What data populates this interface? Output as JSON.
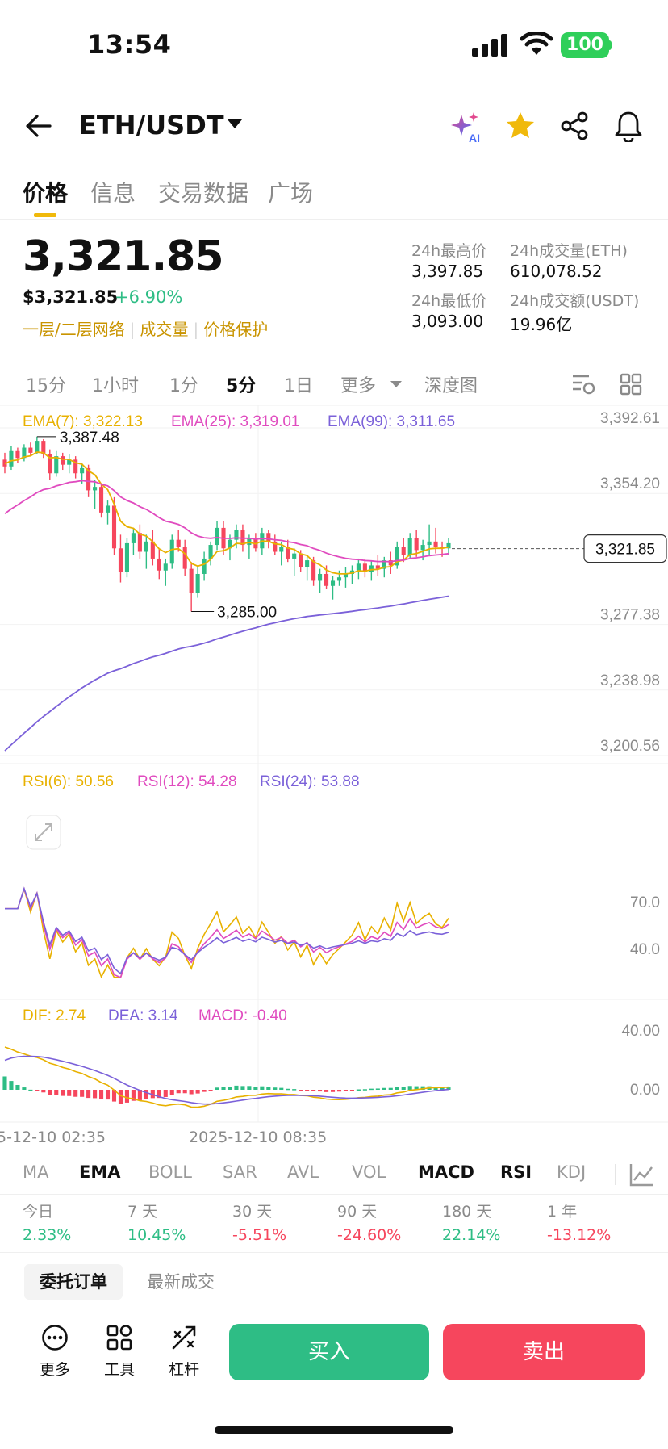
{
  "status_bar": {
    "time": "13:54",
    "battery": "100"
  },
  "header": {
    "pair": "ETH/USDT",
    "icons": [
      "back-arrow-icon",
      "ai-sparkle-icon",
      "star-icon",
      "share-icon",
      "bell-icon"
    ],
    "star_color": "#f0b90b"
  },
  "tabs": [
    {
      "label": "价格",
      "active": true
    },
    {
      "label": "信息",
      "active": false
    },
    {
      "label": "交易数据",
      "active": false
    },
    {
      "label": "广场",
      "active": false
    }
  ],
  "price": {
    "last": "3,321.85",
    "usd": "$3,321.85",
    "change": "+6.90%",
    "links": [
      "一层/二层网络",
      "成交量",
      "价格保护"
    ]
  },
  "stats": {
    "high_label": "24h最高价",
    "high": "3,397.85",
    "vol_eth_label": "24h成交量(ETH)",
    "vol_eth": "610,078.52",
    "low_label": "24h最低价",
    "low": "3,093.00",
    "vol_usdt_label": "24h成交额(USDT)",
    "vol_usdt": "19.96亿"
  },
  "intervals": [
    {
      "label": "15分",
      "active": false
    },
    {
      "label": "1小时",
      "active": false
    },
    {
      "label": "1分",
      "active": false
    },
    {
      "label": "5分",
      "active": true
    },
    {
      "label": "1日",
      "active": false
    },
    {
      "label": "更多",
      "active": false
    },
    {
      "label": "深度图",
      "active": false
    }
  ],
  "chart_data": {
    "type": "candlestick",
    "ema_labels": {
      "ema7": "EMA(7): 3,322.13",
      "ema25": "EMA(25): 3,319.01",
      "ema99": "EMA(99): 3,311.65"
    },
    "y_ticks": [
      "3,392.61",
      "3,354.20",
      "3,277.38",
      "3,238.98",
      "3,200.56"
    ],
    "ylim": [
      3200.56,
      3392.61
    ],
    "current_price": "3,321.85",
    "high_marker": "3,387.48",
    "low_marker": "3,285.00",
    "candles": [
      [
        3374,
        3378,
        3366,
        3370
      ],
      [
        3370,
        3382,
        3368,
        3379
      ],
      [
        3379,
        3381,
        3372,
        3375
      ],
      [
        3375,
        3383,
        3373,
        3381
      ],
      [
        3381,
        3384,
        3376,
        3378
      ],
      [
        3378,
        3387.48,
        3377,
        3385
      ],
      [
        3385,
        3386,
        3375,
        3377
      ],
      [
        3377,
        3380,
        3362,
        3366
      ],
      [
        3366,
        3379,
        3364,
        3376
      ],
      [
        3376,
        3378,
        3368,
        3371
      ],
      [
        3371,
        3377,
        3366,
        3374
      ],
      [
        3374,
        3376,
        3363,
        3366
      ],
      [
        3366,
        3372,
        3360,
        3369
      ],
      [
        3369,
        3371,
        3352,
        3356
      ],
      [
        3356,
        3362,
        3345,
        3358
      ],
      [
        3358,
        3360,
        3340,
        3343
      ],
      [
        3343,
        3350,
        3336,
        3347
      ],
      [
        3347,
        3352,
        3318,
        3322
      ],
      [
        3322,
        3330,
        3302,
        3308
      ],
      [
        3308,
        3328,
        3305,
        3325
      ],
      [
        3325,
        3334,
        3318,
        3331
      ],
      [
        3331,
        3336,
        3316,
        3320
      ],
      [
        3320,
        3330,
        3310,
        3326
      ],
      [
        3326,
        3333,
        3312,
        3316
      ],
      [
        3316,
        3322,
        3304,
        3309
      ],
      [
        3309,
        3316,
        3300,
        3313
      ],
      [
        3313,
        3330,
        3310,
        3327
      ],
      [
        3327,
        3333,
        3320,
        3323
      ],
      [
        3323,
        3327,
        3306,
        3310
      ],
      [
        3310,
        3314,
        3285,
        3296
      ],
      [
        3296,
        3311,
        3293,
        3307
      ],
      [
        3307,
        3320,
        3303,
        3316
      ],
      [
        3316,
        3326,
        3312,
        3324
      ],
      [
        3324,
        3338,
        3321,
        3334
      ],
      [
        3334,
        3338,
        3318,
        3322
      ],
      [
        3322,
        3330,
        3315,
        3327
      ],
      [
        3327,
        3336,
        3322,
        3333
      ],
      [
        3333,
        3336,
        3320,
        3324
      ],
      [
        3324,
        3330,
        3316,
        3328
      ],
      [
        3328,
        3331,
        3320,
        3322
      ],
      [
        3322,
        3334,
        3318,
        3331
      ],
      [
        3331,
        3333,
        3322,
        3326
      ],
      [
        3326,
        3330,
        3318,
        3320
      ],
      [
        3320,
        3326,
        3312,
        3323
      ],
      [
        3323,
        3327,
        3314,
        3316
      ],
      [
        3316,
        3322,
        3306,
        3319
      ],
      [
        3319,
        3321,
        3308,
        3311
      ],
      [
        3311,
        3318,
        3303,
        3315
      ],
      [
        3315,
        3317,
        3300,
        3303
      ],
      [
        3303,
        3310,
        3296,
        3307
      ],
      [
        3307,
        3312,
        3298,
        3300
      ],
      [
        3300,
        3306,
        3292,
        3303
      ],
      [
        3303,
        3309,
        3300,
        3305
      ],
      [
        3305,
        3311,
        3299,
        3307
      ],
      [
        3307,
        3312,
        3301,
        3309
      ],
      [
        3309,
        3316,
        3304,
        3313
      ],
      [
        3313,
        3316,
        3305,
        3308
      ],
      [
        3308,
        3315,
        3303,
        3312
      ],
      [
        3312,
        3318,
        3306,
        3310
      ],
      [
        3310,
        3317,
        3305,
        3315
      ],
      [
        3315,
        3320,
        3307,
        3312
      ],
      [
        3312,
        3326,
        3310,
        3323
      ],
      [
        3323,
        3328,
        3314,
        3318
      ],
      [
        3318,
        3331,
        3316,
        3328
      ],
      [
        3328,
        3333,
        3317,
        3321
      ],
      [
        3321,
        3327,
        3315,
        3324
      ],
      [
        3324,
        3336,
        3318,
        3326
      ],
      [
        3326,
        3334,
        3319,
        3323
      ],
      [
        3323,
        3326,
        3317,
        3322
      ],
      [
        3322,
        3328,
        3318,
        3325
      ]
    ],
    "rsi_labels": {
      "rsi6": "RSI(6): 50.56",
      "rsi12": "RSI(12): 54.28",
      "rsi24": "RSI(24): 53.88"
    },
    "rsi_ticks": [
      "70.0",
      "40.0"
    ],
    "macd_labels": {
      "dif": "DIF: 2.74",
      "dea": "DEA: 3.14",
      "macd": "MACD: -0.40"
    },
    "macd_ticks": [
      "40.00",
      "0.00"
    ],
    "x_ticks": [
      "5-12-10 02:35",
      "2025-12-10 08:35"
    ],
    "colors": {
      "up": "#2ebd85",
      "down": "#f6465d",
      "ema7": "#e8b100",
      "ema25": "#e04bbf",
      "ema99": "#7b61d9"
    }
  },
  "indicators": [
    {
      "label": "MA",
      "active": false
    },
    {
      "label": "EMA",
      "active": true
    },
    {
      "label": "BOLL",
      "active": false
    },
    {
      "label": "SAR",
      "active": false
    },
    {
      "label": "AVL",
      "active": false
    },
    {
      "label": "VOL",
      "active": false
    },
    {
      "label": "MACD",
      "active": true
    },
    {
      "label": "RSI",
      "active": true
    },
    {
      "label": "KDJ",
      "active": false
    }
  ],
  "performance": [
    {
      "label": "今日",
      "value": "2.33%",
      "up": true
    },
    {
      "label": "7 天",
      "value": "10.45%",
      "up": true
    },
    {
      "label": "30 天",
      "value": "-5.51%",
      "up": false
    },
    {
      "label": "90 天",
      "value": "-24.60%",
      "up": false
    },
    {
      "label": "180 天",
      "value": "22.14%",
      "up": true
    },
    {
      "label": "1 年",
      "value": "-13.12%",
      "up": false
    }
  ],
  "orders": {
    "tab1": "委托订单",
    "tab2": "最新成交"
  },
  "footer": {
    "more": "更多",
    "tools": "工具",
    "leverage": "杠杆",
    "buy": "买入",
    "sell": "卖出"
  }
}
